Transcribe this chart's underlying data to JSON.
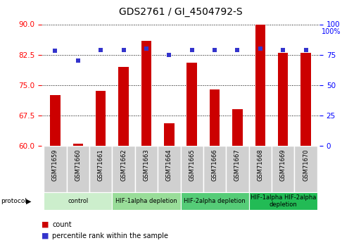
{
  "title": "GDS2761 / GI_4504792-S",
  "samples": [
    "GSM71659",
    "GSM71660",
    "GSM71661",
    "GSM71662",
    "GSM71663",
    "GSM71664",
    "GSM71665",
    "GSM71666",
    "GSM71667",
    "GSM71668",
    "GSM71669",
    "GSM71670"
  ],
  "counts": [
    72.5,
    60.5,
    73.5,
    79.5,
    86.0,
    65.5,
    80.5,
    74.0,
    69.0,
    91.5,
    83.0,
    83.0
  ],
  "percentiles": [
    78,
    70,
    79,
    79,
    80,
    75,
    79,
    79,
    79,
    80,
    79,
    79
  ],
  "ylim_left": [
    60,
    90
  ],
  "ylim_right": [
    0,
    100
  ],
  "yticks_left": [
    60,
    67.5,
    75,
    82.5,
    90
  ],
  "yticks_right": [
    0,
    25,
    50,
    75,
    100
  ],
  "bar_color": "#cc0000",
  "dot_color": "#3333cc",
  "plot_bg": "#ffffff",
  "protocol_groups": [
    {
      "label": "control",
      "start": 0,
      "end": 2,
      "color": "#cceecc"
    },
    {
      "label": "HIF-1alpha depletion",
      "start": 3,
      "end": 5,
      "color": "#99dd99"
    },
    {
      "label": "HIF-2alpha depletion",
      "start": 6,
      "end": 8,
      "color": "#55cc77"
    },
    {
      "label": "HIF-1alpha HIF-2alpha\ndepletion",
      "start": 9,
      "end": 11,
      "color": "#22bb55"
    }
  ],
  "legend_count_label": "count",
  "legend_percentile_label": "percentile rank within the sample"
}
